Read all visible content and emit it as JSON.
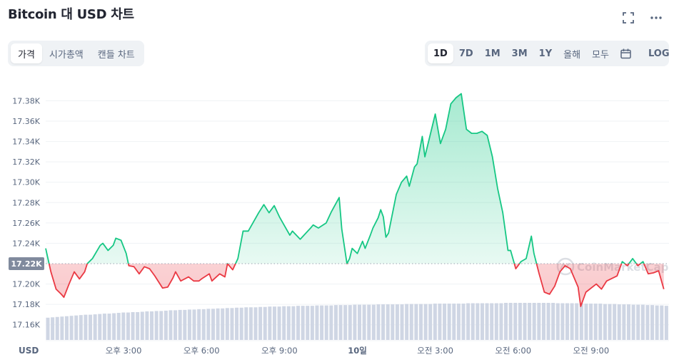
{
  "title": "Bitcoin 대 USD 차트",
  "icons": {
    "fullscreen": "fullscreen-icon",
    "more": "more-dots-icon",
    "calendar": "calendar-icon"
  },
  "tabs": [
    {
      "label": "가격",
      "active": true
    },
    {
      "label": "시가총액",
      "active": false
    },
    {
      "label": "캔들 차트",
      "active": false
    }
  ],
  "ranges": [
    {
      "label": "1D",
      "active": true
    },
    {
      "label": "7D",
      "active": false
    },
    {
      "label": "1M",
      "active": false
    },
    {
      "label": "3M",
      "active": false
    },
    {
      "label": "1Y",
      "active": false
    },
    {
      "label": "올해",
      "active": false
    },
    {
      "label": "모두",
      "active": false
    }
  ],
  "log_label": "LOG",
  "watermark": "CoinMarketCap",
  "colors": {
    "up": "#16c784",
    "down": "#ea3943",
    "volume": "#cfd6e4",
    "grid": "#eff2f5",
    "axis_text": "#58667e",
    "ref_label_bg": "#808a9d"
  },
  "chart_data": {
    "type": "line",
    "title": "",
    "xlabel": "",
    "ylabel": "USD",
    "ylim": [
      17150,
      17395
    ],
    "y_ticks": [
      "17.16K",
      "17.18K",
      "17.20K",
      "17.22K",
      "17.24K",
      "17.26K",
      "17.28K",
      "17.30K",
      "17.32K",
      "17.34K",
      "17.36K",
      "17.38K"
    ],
    "y_tick_values": [
      17160,
      17180,
      17200,
      17220,
      17240,
      17260,
      17280,
      17300,
      17320,
      17340,
      17360,
      17380
    ],
    "reference_price": 17220,
    "reference_label": "17.22K",
    "x_range": [
      0,
      24
    ],
    "x_ticks": [
      {
        "label": "오후 3:00",
        "t": 3
      },
      {
        "label": "오후 6:00",
        "t": 6
      },
      {
        "label": "오후 9:00",
        "t": 9
      },
      {
        "label": "10일",
        "t": 12
      },
      {
        "label": "오전 3:00",
        "t": 15
      },
      {
        "label": "오전 6:00",
        "t": 18
      },
      {
        "label": "오전 9:00",
        "t": 21
      }
    ],
    "series": [
      {
        "points": [
          [
            0,
            17235
          ],
          [
            0.2,
            17212
          ],
          [
            0.4,
            17195
          ],
          [
            0.6,
            17190
          ],
          [
            0.7,
            17187
          ],
          [
            0.9,
            17200
          ],
          [
            1.1,
            17212
          ],
          [
            1.3,
            17205
          ],
          [
            1.5,
            17212
          ],
          [
            1.6,
            17220
          ],
          [
            1.8,
            17225
          ],
          [
            2.1,
            17238
          ],
          [
            2.2,
            17240
          ],
          [
            2.4,
            17233
          ],
          [
            2.6,
            17238
          ],
          [
            2.7,
            17245
          ],
          [
            2.9,
            17243
          ],
          [
            3.1,
            17230
          ],
          [
            3.2,
            17218
          ],
          [
            3.4,
            17217
          ],
          [
            3.6,
            17210
          ],
          [
            3.8,
            17217
          ],
          [
            4.0,
            17215
          ],
          [
            4.2,
            17208
          ],
          [
            4.5,
            17196
          ],
          [
            4.7,
            17197
          ],
          [
            4.9,
            17206
          ],
          [
            5.0,
            17212
          ],
          [
            5.2,
            17203
          ],
          [
            5.5,
            17207
          ],
          [
            5.7,
            17203
          ],
          [
            5.9,
            17203
          ],
          [
            6.0,
            17205
          ],
          [
            6.3,
            17210
          ],
          [
            6.4,
            17203
          ],
          [
            6.7,
            17210
          ],
          [
            6.9,
            17207
          ],
          [
            7.0,
            17220
          ],
          [
            7.2,
            17214
          ],
          [
            7.4,
            17225
          ],
          [
            7.6,
            17252
          ],
          [
            7.8,
            17252
          ],
          [
            8.2,
            17270
          ],
          [
            8.4,
            17278
          ],
          [
            8.6,
            17270
          ],
          [
            8.8,
            17277
          ],
          [
            9.0,
            17266
          ],
          [
            9.2,
            17257
          ],
          [
            9.4,
            17248
          ],
          [
            9.5,
            17252
          ],
          [
            9.8,
            17244
          ],
          [
            10.2,
            17255
          ],
          [
            10.3,
            17258
          ],
          [
            10.5,
            17255
          ],
          [
            10.8,
            17260
          ],
          [
            11.0,
            17271
          ],
          [
            11.3,
            17285
          ],
          [
            11.4,
            17254
          ],
          [
            11.6,
            17220
          ],
          [
            11.7,
            17225
          ],
          [
            11.8,
            17235
          ],
          [
            12.0,
            17230
          ],
          [
            12.2,
            17242
          ],
          [
            12.3,
            17235
          ],
          [
            12.5,
            17248
          ],
          [
            12.6,
            17255
          ],
          [
            12.8,
            17265
          ],
          [
            12.9,
            17273
          ],
          [
            13.0,
            17266
          ],
          [
            13.1,
            17246
          ],
          [
            13.2,
            17250
          ],
          [
            13.5,
            17288
          ],
          [
            13.7,
            17300
          ],
          [
            13.9,
            17306
          ],
          [
            14.0,
            17296
          ],
          [
            14.2,
            17315
          ],
          [
            14.3,
            17318
          ],
          [
            14.5,
            17345
          ],
          [
            14.6,
            17325
          ],
          [
            14.8,
            17346
          ],
          [
            15.0,
            17367
          ],
          [
            15.2,
            17338
          ],
          [
            15.4,
            17352
          ],
          [
            15.6,
            17377
          ],
          [
            15.8,
            17383
          ],
          [
            16.0,
            17387
          ],
          [
            16.2,
            17352
          ],
          [
            16.4,
            17348
          ],
          [
            16.6,
            17348
          ],
          [
            16.8,
            17350
          ],
          [
            17.0,
            17346
          ],
          [
            17.2,
            17325
          ],
          [
            17.4,
            17294
          ],
          [
            17.6,
            17270
          ],
          [
            17.8,
            17233
          ],
          [
            17.9,
            17233
          ],
          [
            18.1,
            17215
          ],
          [
            18.3,
            17222
          ],
          [
            18.5,
            17225
          ],
          [
            18.7,
            17247
          ],
          [
            18.8,
            17230
          ],
          [
            19.0,
            17210
          ],
          [
            19.2,
            17192
          ],
          [
            19.4,
            17190
          ],
          [
            19.6,
            17198
          ],
          [
            19.8,
            17212
          ],
          [
            20.0,
            17218
          ],
          [
            20.2,
            17215
          ],
          [
            20.5,
            17197
          ],
          [
            20.6,
            17178
          ],
          [
            20.8,
            17192
          ],
          [
            21.2,
            17200
          ],
          [
            21.4,
            17195
          ],
          [
            21.6,
            17203
          ],
          [
            22.0,
            17208
          ],
          [
            22.2,
            17222
          ],
          [
            22.4,
            17218
          ],
          [
            22.6,
            17225
          ],
          [
            22.8,
            17218
          ],
          [
            23.0,
            17222
          ],
          [
            23.2,
            17210
          ],
          [
            23.4,
            17211
          ],
          [
            23.6,
            17213
          ],
          [
            23.8,
            17195
          ]
        ]
      }
    ],
    "volume_range": [
      0,
      1
    ],
    "volume": [
      0.6,
      0.61,
      0.62,
      0.63,
      0.64,
      0.65,
      0.66,
      0.67,
      0.68,
      0.68,
      0.69,
      0.7,
      0.71,
      0.71,
      0.72,
      0.73,
      0.74,
      0.74,
      0.75,
      0.75,
      0.76,
      0.77,
      0.77,
      0.78,
      0.78,
      0.79,
      0.8,
      0.8,
      0.81,
      0.81,
      0.82,
      0.82,
      0.83,
      0.83,
      0.84,
      0.84,
      0.85,
      0.85,
      0.86,
      0.86,
      0.87,
      0.87,
      0.88,
      0.88,
      0.88,
      0.89,
      0.89,
      0.9,
      0.9,
      0.9,
      0.91,
      0.91,
      0.91,
      0.92,
      0.92,
      0.92,
      0.92,
      0.93,
      0.93,
      0.93,
      0.93,
      0.94,
      0.94,
      0.94,
      0.94,
      0.95,
      0.95,
      0.95,
      0.95,
      0.95,
      0.96,
      0.96,
      0.96,
      0.96,
      0.96,
      0.96,
      0.97,
      0.97,
      0.97,
      0.97,
      0.97,
      0.97,
      0.98,
      0.98,
      0.98,
      0.98,
      0.98,
      0.98,
      0.98,
      0.99,
      0.99,
      0.99,
      0.99,
      0.99,
      0.99,
      0.99,
      0.99,
      1.0,
      1.0,
      1.0,
      1.0,
      1.0,
      1.0,
      1.0,
      1.0,
      1.0,
      1.0,
      1.0,
      0.99,
      0.99,
      0.99,
      0.99,
      0.99,
      0.99,
      0.98,
      0.98,
      0.98,
      0.98,
      0.97,
      0.97,
      0.97,
      0.96,
      0.96,
      0.96,
      0.95,
      0.95,
      0.95,
      0.94,
      0.94,
      0.93,
      0.93,
      0.92
    ]
  }
}
